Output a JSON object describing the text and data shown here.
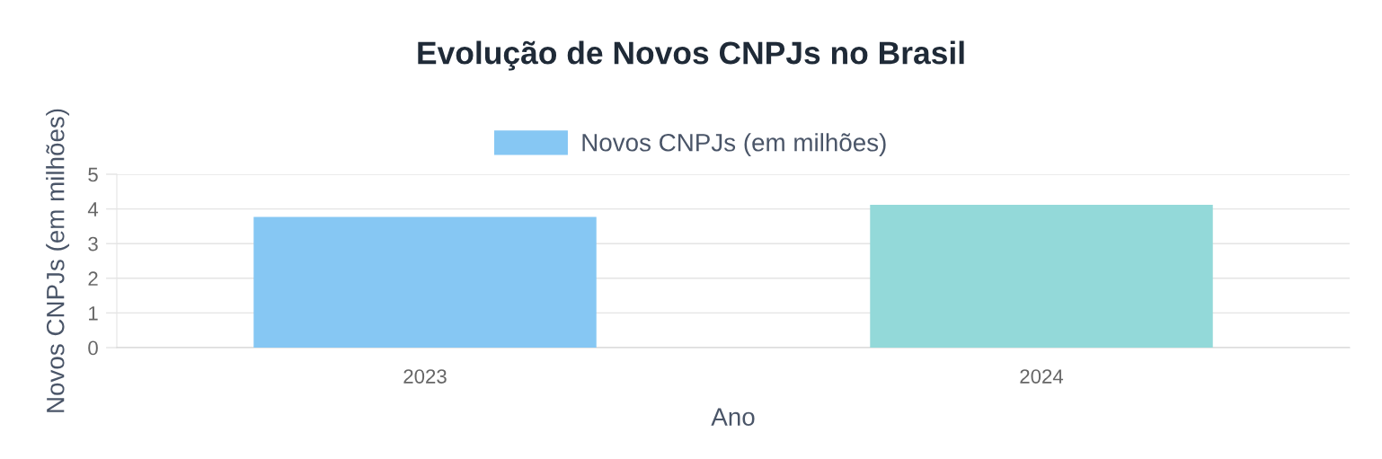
{
  "chart_data": {
    "type": "bar",
    "title": "Evolução de Novos CNPJs no Brasil",
    "xlabel": "Ano",
    "ylabel": "Novos CNPJs (em milhões)",
    "categories": [
      "2023",
      "2024"
    ],
    "series": [
      {
        "name": "Novos CNPJs (em milhões)",
        "colors": [
          "#86c7f3",
          "#93d9d9"
        ],
        "values": [
          3.75,
          4.1
        ]
      }
    ],
    "ylim": [
      0,
      5
    ],
    "yticks": [
      0,
      1,
      2,
      3,
      4,
      5
    ],
    "grid": "y",
    "legend": "top"
  }
}
